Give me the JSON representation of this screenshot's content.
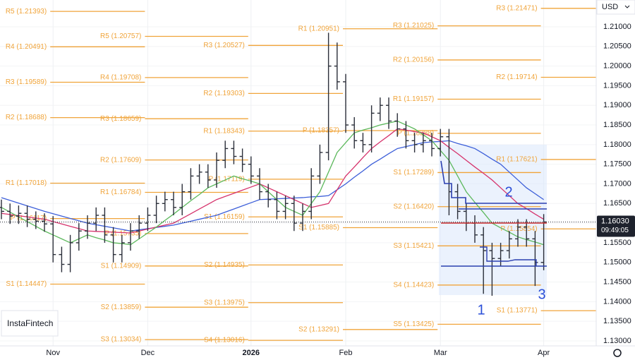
{
  "chart_data": {
    "type": "ohlc",
    "currency": "USD",
    "watermark": "InstaFintech",
    "categories": [
      null,
      null,
      null,
      null,
      null,
      null,
      "Nov",
      null,
      null,
      null,
      null,
      null,
      null,
      null,
      null,
      null,
      null,
      "Dec",
      null,
      null,
      null,
      null,
      null,
      null,
      null,
      null,
      null,
      null,
      null,
      "2026",
      null,
      null,
      null,
      null,
      null,
      null,
      null,
      null,
      null,
      null,
      "Feb",
      null,
      null,
      null,
      null,
      null,
      null,
      null,
      null,
      null,
      null,
      "Mar",
      null,
      null,
      null,
      null,
      null,
      null,
      null,
      null,
      null,
      null,
      null,
      "Apr"
    ],
    "open": [
      1.164,
      1.163,
      1.1618,
      1.1625,
      1.161,
      1.1605,
      1.1598,
      1.152,
      1.1495,
      1.155,
      1.158,
      1.16,
      1.162,
      1.157,
      1.152,
      1.155,
      1.158,
      1.16,
      1.162,
      1.165,
      1.166,
      1.164,
      1.168,
      1.172,
      1.173,
      1.171,
      1.176,
      1.179,
      1.177,
      1.175,
      1.172,
      1.168,
      1.166,
      1.163,
      1.165,
      1.16,
      1.163,
      1.172,
      1.178,
      1.2,
      1.196,
      1.185,
      1.181,
      1.18,
      1.188,
      1.19,
      1.186,
      1.184,
      1.181,
      1.18,
      1.181,
      1.179,
      1.182,
      1.168,
      1.163,
      1.16,
      1.157,
      1.153,
      1.151,
      1.153,
      1.156,
      1.159,
      1.156,
      1.15
    ],
    "high": [
      1.166,
      1.165,
      1.1645,
      1.1645,
      1.163,
      1.1625,
      1.1618,
      1.154,
      1.157,
      1.16,
      1.162,
      1.164,
      1.164,
      1.159,
      1.157,
      1.16,
      1.162,
      1.164,
      1.167,
      1.168,
      1.168,
      1.17,
      1.174,
      1.175,
      1.175,
      1.178,
      1.181,
      1.181,
      1.179,
      1.177,
      1.174,
      1.17,
      1.168,
      1.167,
      1.167,
      1.165,
      1.174,
      1.18,
      1.2085,
      1.206,
      1.198,
      1.187,
      1.183,
      1.19,
      1.192,
      1.192,
      1.188,
      1.186,
      1.183,
      1.183,
      1.183,
      1.184,
      1.184,
      1.17,
      1.165,
      1.162,
      1.159,
      1.155,
      1.155,
      1.158,
      1.161,
      1.161,
      1.158,
      1.1623
    ],
    "low": [
      1.161,
      1.1598,
      1.1598,
      1.159,
      1.1585,
      1.1578,
      1.15,
      1.1475,
      1.1475,
      1.153,
      1.156,
      1.158,
      1.155,
      1.15,
      1.15,
      1.153,
      1.156,
      1.158,
      1.16,
      1.163,
      1.162,
      1.162,
      1.166,
      1.17,
      1.169,
      1.169,
      1.174,
      1.175,
      1.173,
      1.17,
      1.166,
      1.164,
      1.161,
      1.161,
      1.158,
      1.158,
      1.161,
      1.17,
      1.176,
      1.194,
      1.183,
      1.179,
      1.178,
      1.178,
      1.186,
      1.184,
      1.182,
      1.179,
      1.178,
      1.178,
      1.177,
      1.177,
      1.162,
      1.161,
      1.158,
      1.155,
      1.142,
      1.1415,
      1.149,
      1.151,
      1.154,
      1.154,
      1.144,
      1.148
    ],
    "close": [
      1.163,
      1.1618,
      1.1625,
      1.161,
      1.1605,
      1.1598,
      1.152,
      1.1495,
      1.155,
      1.158,
      1.16,
      1.162,
      1.157,
      1.152,
      1.155,
      1.158,
      1.16,
      1.162,
      1.165,
      1.166,
      1.164,
      1.168,
      1.172,
      1.173,
      1.171,
      1.176,
      1.179,
      1.177,
      1.175,
      1.172,
      1.168,
      1.166,
      1.163,
      1.165,
      1.16,
      1.163,
      1.172,
      1.178,
      1.2,
      1.196,
      1.185,
      1.181,
      1.18,
      1.188,
      1.19,
      1.186,
      1.184,
      1.181,
      1.18,
      1.181,
      1.179,
      1.182,
      1.168,
      1.163,
      1.16,
      1.157,
      1.153,
      1.151,
      1.153,
      1.156,
      1.159,
      1.156,
      1.15,
      1.1603
    ],
    "bar_color": "#2a2e39",
    "moving_averages": [
      {
        "color": "#3d5fd9",
        "values": [
          1.1665,
          1.1658,
          1.1651,
          1.1644,
          1.1637,
          1.163,
          1.1624,
          1.1618,
          1.1612,
          1.1606,
          1.16,
          1.1596,
          1.1592,
          1.1588,
          1.1584,
          1.158,
          1.1583,
          1.1586,
          1.1589,
          1.1592,
          1.1595,
          1.16,
          1.1605,
          1.161,
          1.1615,
          1.162,
          1.1628,
          1.1636,
          1.1644,
          1.1652,
          1.166,
          1.1661,
          1.1662,
          1.1663,
          1.1664,
          1.1665,
          1.1667,
          1.1668,
          1.167,
          1.1685,
          1.17,
          1.1717,
          1.1733,
          1.175,
          1.1763,
          1.1777,
          1.179,
          1.1795,
          1.18,
          1.1805,
          1.1807,
          1.1808,
          1.181,
          1.1803,
          1.1797,
          1.179,
          1.1777,
          1.1763,
          1.175,
          1.173,
          1.171,
          1.169,
          1.1675,
          1.166
        ]
      },
      {
        "color": "#d6336c",
        "values": [
          1.1625,
          1.1622,
          1.1619,
          1.1616,
          1.1613,
          1.161,
          1.1604,
          1.1598,
          1.1592,
          1.1586,
          1.158,
          1.1579,
          1.1578,
          1.1577,
          1.1576,
          1.1575,
          1.158,
          1.1585,
          1.159,
          1.1595,
          1.16,
          1.1612,
          1.1624,
          1.1636,
          1.1648,
          1.166,
          1.1668,
          1.1676,
          1.1684,
          1.1692,
          1.17,
          1.169,
          1.168,
          1.167,
          1.166,
          1.165,
          1.164,
          1.1645,
          1.165,
          1.1685,
          1.172,
          1.1743,
          1.1767,
          1.179,
          1.1807,
          1.1823,
          1.184,
          1.1837,
          1.1833,
          1.183,
          1.182,
          1.181,
          1.1793,
          1.1777,
          1.176,
          1.1743,
          1.1727,
          1.171,
          1.169,
          1.167,
          1.165,
          1.1637,
          1.1623,
          1.161
        ]
      },
      {
        "color": "#5cb85c",
        "values": [
          1.164,
          1.1628,
          1.1616,
          1.1604,
          1.1592,
          1.158,
          1.157,
          1.156,
          1.155,
          1.156,
          1.157,
          1.1563,
          1.1557,
          1.155,
          1.1548,
          1.1545,
          1.156,
          1.1575,
          1.159,
          1.1607,
          1.1623,
          1.164,
          1.1657,
          1.1673,
          1.169,
          1.17,
          1.171,
          1.172,
          1.1713,
          1.1707,
          1.17,
          1.168,
          1.166,
          1.164,
          1.163,
          1.162,
          1.165,
          1.168,
          1.173,
          1.178,
          1.1805,
          1.183,
          1.1837,
          1.1843,
          1.185,
          1.1855,
          1.186,
          1.185,
          1.184,
          1.1825,
          1.181,
          1.1785,
          1.176,
          1.172,
          1.168,
          1.1653,
          1.1627,
          1.16,
          1.1588,
          1.1577,
          1.1565,
          1.1558,
          1.1552,
          1.1545
        ]
      }
    ],
    "last_price": {
      "value": 1.1603,
      "label": "1.16030"
    },
    "countdown": "09:49:05",
    "ylim": [
      1.12874,
      1.21683
    ],
    "yticks": [
      {
        "value": 1.13,
        "label": "1.13000"
      },
      {
        "value": 1.135,
        "label": "1.13500"
      },
      {
        "value": 1.14,
        "label": "1.14000"
      },
      {
        "value": 1.145,
        "label": "1.14500"
      },
      {
        "value": 1.15,
        "label": "1.15000"
      },
      {
        "value": 1.155,
        "label": "1.15500"
      },
      {
        "value": 1.16,
        "label": "1.16000"
      },
      {
        "value": 1.165,
        "label": "1.16500"
      },
      {
        "value": 1.17,
        "label": "1.17000"
      },
      {
        "value": 1.175,
        "label": "1.17500"
      },
      {
        "value": 1.18,
        "label": "1.18000"
      },
      {
        "value": 1.185,
        "label": "1.18500"
      },
      {
        "value": 1.19,
        "label": "1.19000"
      },
      {
        "value": 1.195,
        "label": "1.19500"
      },
      {
        "value": 1.2,
        "label": "1.20000"
      },
      {
        "value": 1.205,
        "label": "1.20500"
      },
      {
        "value": 1.21,
        "label": "1.21000"
      }
    ],
    "grid": true,
    "pivot_color": "#f0a43a",
    "pivot_periods": [
      {
        "levels": [
          {
            "label": "R5 (1.21393)",
            "value": 1.21393
          },
          {
            "label": "R4 (1.20491)",
            "value": 1.20491
          },
          {
            "label": "R3 (1.19589)",
            "value": 1.19589
          },
          {
            "label": "R2 (1.18688)",
            "value": 1.18688
          },
          {
            "label": "R1 (1.17018)",
            "value": 1.17018
          },
          {
            "label": "P (1.16117)",
            "value": 1.16117
          },
          {
            "label": "S1 (1.14447)",
            "value": 1.14447
          }
        ]
      },
      {
        "levels": [
          {
            "label": "R5 (1.20757)",
            "value": 1.20757
          },
          {
            "label": "R4 (1.19708)",
            "value": 1.19708
          },
          {
            "label": "R3 (1.18659)",
            "value": 1.18659
          },
          {
            "label": "R2 (1.17609)",
            "value": 1.17609
          },
          {
            "label": "R1 (1.16784)",
            "value": 1.16784
          },
          {
            "label": "P (1.15735)",
            "value": 1.15735
          },
          {
            "label": "S1 (1.14909)",
            "value": 1.14909
          },
          {
            "label": "S2 (1.13859)",
            "value": 1.13859
          },
          {
            "label": "S3 (1.13034)",
            "value": 1.13034
          }
        ]
      },
      {
        "levels": [
          {
            "label": "R3 (1.20527)",
            "value": 1.20527
          },
          {
            "label": "R2 (1.19303)",
            "value": 1.19303
          },
          {
            "label": "R1 (1.18343)",
            "value": 1.18343
          },
          {
            "label": "P (1.17119)",
            "value": 1.17119
          },
          {
            "label": "S1 (1.16159)",
            "value": 1.16159
          },
          {
            "label": "S2 (1.14935)",
            "value": 1.14935
          },
          {
            "label": "S3 (1.13975)",
            "value": 1.13975
          },
          {
            "label": "S4 (1.13016)",
            "value": 1.13016
          }
        ]
      },
      {
        "levels": [
          {
            "label": "R1 (1.20951)",
            "value": 1.20951
          },
          {
            "label": "P (1.18357)",
            "value": 1.18357
          },
          {
            "label": "S1 (1.15885)",
            "value": 1.15885
          },
          {
            "label": "S2 (1.13291)",
            "value": 1.13291
          }
        ]
      },
      {
        "levels": [
          {
            "label": "R3 (1.21025)",
            "value": 1.21025
          },
          {
            "label": "R2 (1.20156)",
            "value": 1.20156
          },
          {
            "label": "R1 (1.19157)",
            "value": 1.19157
          },
          {
            "label": "P (1.18288)",
            "value": 1.18288
          },
          {
            "label": "S1 (1.17289)",
            "value": 1.17289
          },
          {
            "label": "S2 (1.16420)",
            "value": 1.1642
          },
          {
            "label": "S3 (1.15421)",
            "value": 1.15421
          },
          {
            "label": "S4 (1.14423)",
            "value": 1.14423
          },
          {
            "label": "S5 (1.13425)",
            "value": 1.13425
          }
        ]
      },
      {
        "levels": [
          {
            "label": "R3 (1.21471)",
            "value": 1.21471
          },
          {
            "label": "R2 (1.19714)",
            "value": 1.19714
          },
          {
            "label": "R1 (1.17621)",
            "value": 1.17621
          },
          {
            "label": "P (1.15854)",
            "value": 1.15854
          },
          {
            "label": "S1 (1.13771)",
            "value": 1.13771
          }
        ]
      }
    ],
    "annotations": [
      "1",
      "2",
      "3"
    ]
  }
}
